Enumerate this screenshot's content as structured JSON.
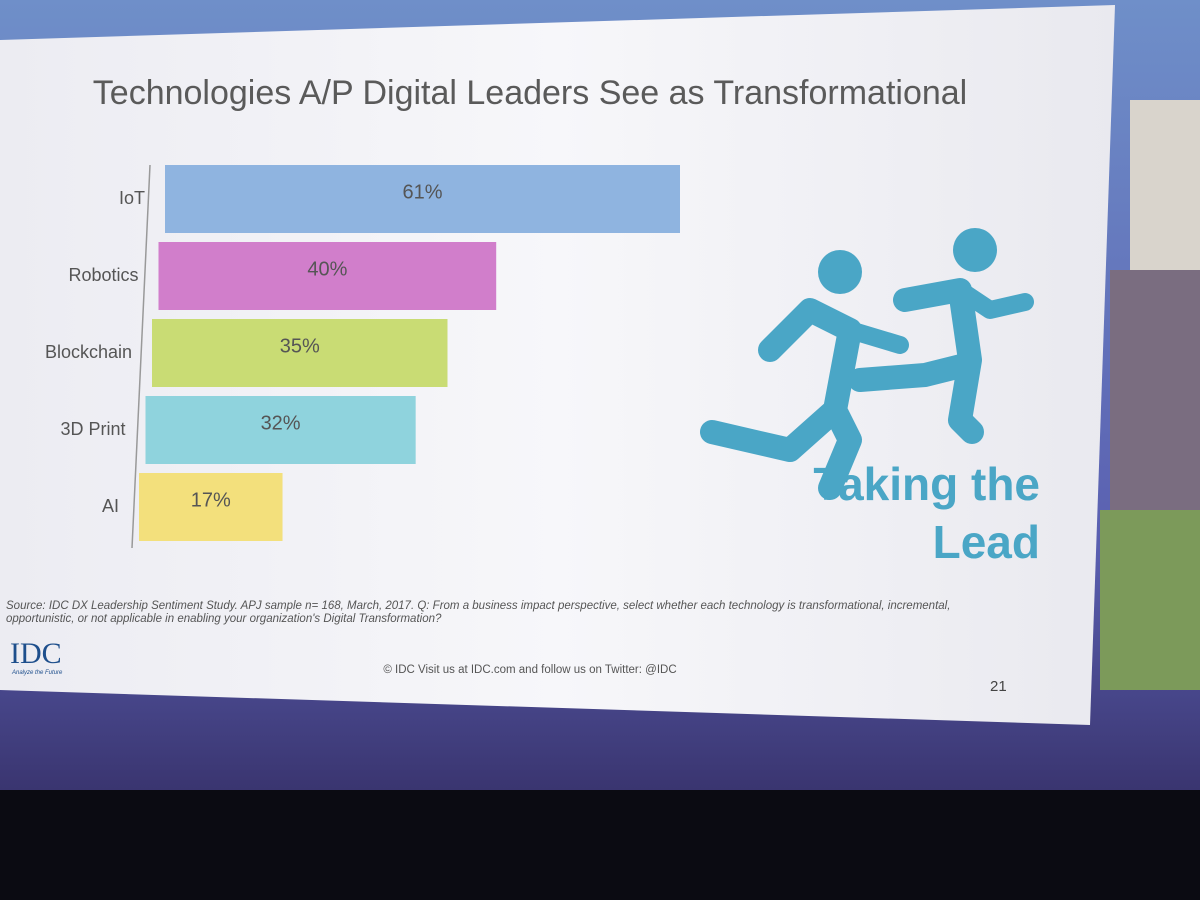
{
  "chart_data": {
    "type": "bar",
    "orientation": "horizontal",
    "title": "Technologies A/P Digital Leaders See as Transformational",
    "categories": [
      "IoT",
      "Robotics",
      "Blockchain",
      "3D Print",
      "AI"
    ],
    "values": [
      61,
      40,
      35,
      32,
      17
    ],
    "value_labels": [
      "61%",
      "40%",
      "35%",
      "32%",
      "17%"
    ],
    "colors": [
      "#8fb4e0",
      "#d17ecb",
      "#c9dc74",
      "#8fd3dd",
      "#f3e07c"
    ],
    "annotation": "Taking the Lead"
  },
  "slide": {
    "source": "Source: IDC DX Leadership Sentiment Study. APJ sample n= 168, March, 2017. Q: From a business impact perspective, select whether each technology is transformational, incremental, opportunistic, or not applicable in enabling your organization's Digital Transformation?",
    "logo": "IDC",
    "tagline": "Analyze the Future",
    "footer": "© IDC  Visit us at IDC.com and follow us on Twitter: @IDC",
    "page_number": "21"
  }
}
